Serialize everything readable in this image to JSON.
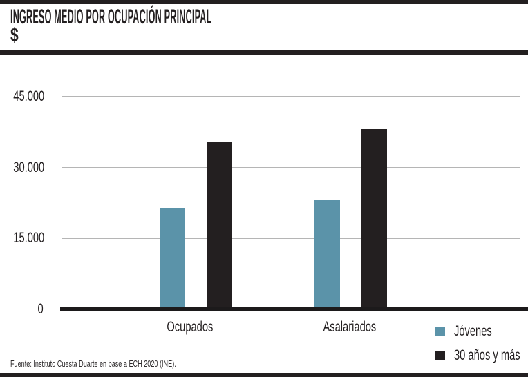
{
  "header": {
    "title": "INGRESO MEDIO POR OCUPACIÓN PRINCIPAL",
    "subtitle": "$"
  },
  "source_note": "Fuente: Instituto Cuesta Duarte en base a ECH 2020 (INE).",
  "colors": {
    "jovenes": "#5B93A9",
    "mayores": "#231F20",
    "gridline": "#B5B5B5",
    "axis": "#1C1A1B",
    "rule": "#231F20",
    "text": "#231F20"
  },
  "legend": {
    "items": [
      {
        "label": "Jóvenes",
        "color": "#5B93A9"
      },
      {
        "label": "30 años y más",
        "color": "#231F20"
      }
    ]
  },
  "chart_data": {
    "type": "bar",
    "title": "INGRESO MEDIO POR OCUPACIÓN PRINCIPAL",
    "xlabel": "",
    "ylabel": "$",
    "categories": [
      "Ocupados",
      "Asalariados"
    ],
    "series": [
      {
        "name": "Jóvenes",
        "color": "#5B93A9",
        "values": [
          21500,
          23300
        ]
      },
      {
        "name": "30 años y más",
        "color": "#231F20",
        "values": [
          35400,
          38200
        ]
      }
    ],
    "y_ticks": [
      {
        "value": 0,
        "label": "0"
      },
      {
        "value": 15000,
        "label": "15.000"
      },
      {
        "value": 30000,
        "label": "30.000"
      },
      {
        "value": 45000,
        "label": "45.000"
      }
    ],
    "ylim": [
      0,
      45000
    ],
    "grid": true,
    "legend_position": "bottom-right"
  }
}
